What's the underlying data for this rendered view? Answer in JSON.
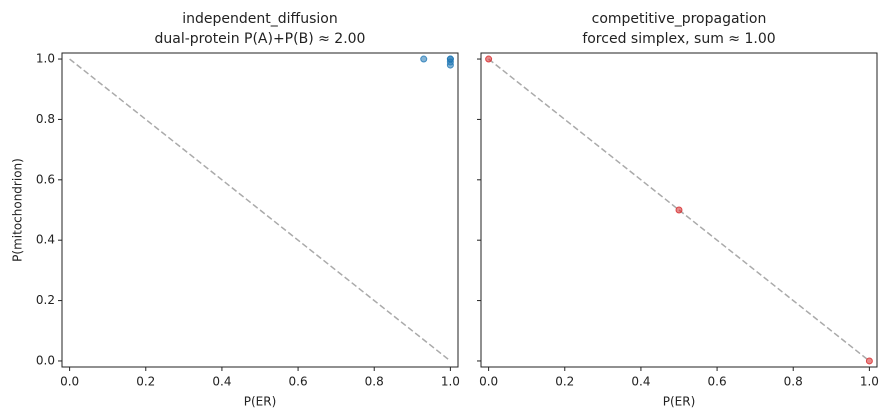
{
  "chart_data": [
    {
      "type": "scatter",
      "title": "independent_diffusion",
      "subtitle": "dual-protein P(A)+P(B) ≈ 2.00",
      "x_label": "P(ER)",
      "y_label": "P(mitochondrion)",
      "xlim": [
        -0.02,
        1.02
      ],
      "ylim": [
        -0.02,
        1.02
      ],
      "xticks": [
        {
          "value": 0,
          "label": "0.0"
        },
        {
          "value": 0.2,
          "label": "0.2"
        },
        {
          "value": 0.4,
          "label": "0.4"
        },
        {
          "value": 0.6,
          "label": "0.6"
        },
        {
          "value": 0.8,
          "label": "0.8"
        },
        {
          "value": 1,
          "label": "1.0"
        }
      ],
      "yticks": [
        {
          "value": 0,
          "label": "0.0"
        },
        {
          "value": 0.2,
          "label": "0.2"
        },
        {
          "value": 0.4,
          "label": "0.4"
        },
        {
          "value": 0.6,
          "label": "0.6"
        },
        {
          "value": 0.8,
          "label": "0.8"
        },
        {
          "value": 1,
          "label": "1.0"
        }
      ],
      "ytick_labels": true,
      "reference_line": {
        "x": [
          0,
          1
        ],
        "y": [
          1,
          0
        ],
        "color": "#aaaaaa"
      },
      "series": [
        {
          "color": "#1f77b4",
          "x": [
            0.93,
            1,
            1,
            1,
            1
          ],
          "values": [
            1,
            1,
            0.98,
            0.99,
            1
          ]
        }
      ]
    },
    {
      "type": "scatter",
      "title": "competitive_propagation",
      "subtitle": "forced simplex, sum ≈ 1.00",
      "x_label": "P(ER)",
      "xlim": [
        -0.02,
        1.02
      ],
      "ylim": [
        -0.02,
        1.02
      ],
      "xticks": [
        {
          "value": 0,
          "label": "0.0"
        },
        {
          "value": 0.2,
          "label": "0.2"
        },
        {
          "value": 0.4,
          "label": "0.4"
        },
        {
          "value": 0.6,
          "label": "0.6"
        },
        {
          "value": 0.8,
          "label": "0.8"
        },
        {
          "value": 1,
          "label": "1.0"
        }
      ],
      "yticks": [
        0,
        0.2,
        0.4,
        0.6,
        0.8,
        1
      ],
      "ytick_labels": false,
      "reference_line": {
        "x": [
          0,
          1
        ],
        "y": [
          1,
          0
        ],
        "color": "#aaaaaa"
      },
      "series": [
        {
          "color": "#d62728",
          "x": [
            0,
            0.5,
            1
          ],
          "values": [
            1,
            0.5,
            0
          ]
        }
      ]
    }
  ]
}
